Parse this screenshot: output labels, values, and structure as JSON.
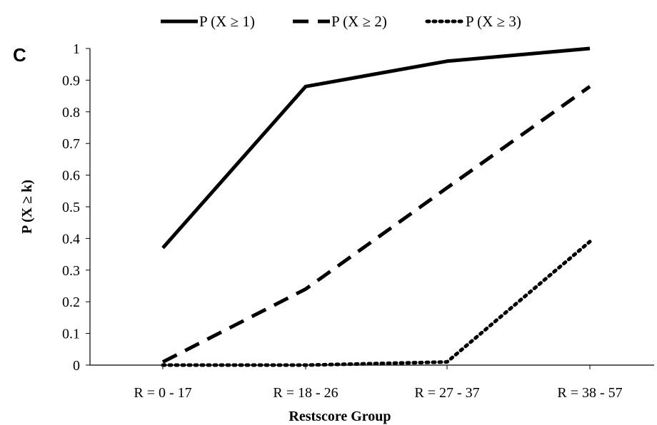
{
  "panel_label": "C",
  "chart_data": {
    "type": "line",
    "categories": [
      "R = 0 - 17",
      "R = 18 - 26",
      "R = 27 - 37",
      "R = 38 - 57"
    ],
    "series": [
      {
        "name": "P (X ≥ 1)",
        "values": [
          0.37,
          0.88,
          0.96,
          1.0
        ],
        "dash": "solid",
        "color": "#000000"
      },
      {
        "name": "P (X ≥ 2)",
        "values": [
          0.01,
          0.24,
          0.56,
          0.88
        ],
        "dash": "dashed",
        "color": "#000000"
      },
      {
        "name": "P (X ≥ 3)",
        "values": [
          0.0,
          0.0,
          0.01,
          0.39
        ],
        "dash": "dotted",
        "color": "#000000"
      }
    ],
    "title": "",
    "xlabel": "Restscore Group",
    "ylabel": "P (X ≥ k)",
    "ylim": [
      0,
      1
    ],
    "yticks": [
      "0",
      "0.1",
      "0.2",
      "0.3",
      "0.4",
      "0.5",
      "0.6",
      "0.7",
      "0.8",
      "0.9",
      "1"
    ],
    "grid": false,
    "legend_position": "top"
  }
}
